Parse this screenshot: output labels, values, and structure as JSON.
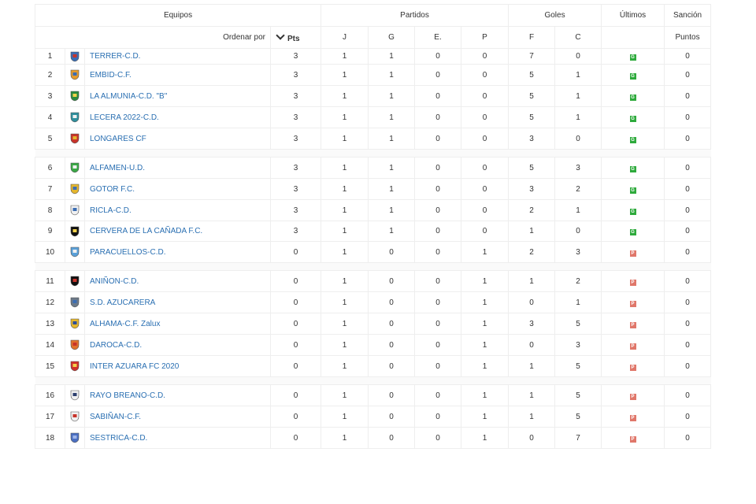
{
  "header": {
    "equipos": "Equipos",
    "partidos": "Partidos",
    "goles": "Goles",
    "ultimos": "Últimos",
    "sancion": "Sanción",
    "ordenar_por": "Ordenar por",
    "pts": "Pts",
    "j": "J",
    "g": "G",
    "e": "E.",
    "p": "P",
    "f": "F",
    "c": "C",
    "puntos": "Puntos"
  },
  "colors": {
    "win": "#2eaa3c",
    "loss": "#e0776a",
    "link": "#2a6fb2"
  },
  "rows": [
    {
      "pos": "1",
      "team": "TERRER-C.D.",
      "pts": "3",
      "j": "1",
      "g": "1",
      "e": "0",
      "p": "0",
      "f": "7",
      "c": "0",
      "last": "G",
      "sancion": "0",
      "crest": "shield-blue-red"
    },
    {
      "pos": "2",
      "team": "EMBID-C.F.",
      "pts": "3",
      "j": "1",
      "g": "1",
      "e": "0",
      "p": "0",
      "f": "5",
      "c": "1",
      "last": "G",
      "sancion": "0",
      "crest": "shield-orange"
    },
    {
      "pos": "3",
      "team": "LA ALMUNIA-C.D. \"B\"",
      "pts": "3",
      "j": "1",
      "g": "1",
      "e": "0",
      "p": "0",
      "f": "5",
      "c": "1",
      "last": "G",
      "sancion": "0",
      "crest": "round-green"
    },
    {
      "pos": "4",
      "team": "LECERA 2022-C.D.",
      "pts": "3",
      "j": "1",
      "g": "1",
      "e": "0",
      "p": "0",
      "f": "5",
      "c": "1",
      "last": "G",
      "sancion": "0",
      "crest": "shield-teal"
    },
    {
      "pos": "5",
      "team": "LONGARES CF",
      "pts": "3",
      "j": "1",
      "g": "1",
      "e": "0",
      "p": "0",
      "f": "3",
      "c": "0",
      "last": "G",
      "sancion": "0",
      "crest": "shield-red-gold"
    },
    {
      "pos": "6",
      "team": "ALFAMEN-U.D.",
      "pts": "3",
      "j": "1",
      "g": "1",
      "e": "0",
      "p": "0",
      "f": "5",
      "c": "3",
      "last": "G",
      "sancion": "0",
      "crest": "shield-green"
    },
    {
      "pos": "7",
      "team": "GOTOR F.C.",
      "pts": "3",
      "j": "1",
      "g": "1",
      "e": "0",
      "p": "0",
      "f": "3",
      "c": "2",
      "last": "G",
      "sancion": "0",
      "crest": "shield-gold-blue"
    },
    {
      "pos": "8",
      "team": "RICLA-C.D.",
      "pts": "3",
      "j": "1",
      "g": "1",
      "e": "0",
      "p": "0",
      "f": "2",
      "c": "1",
      "last": "G",
      "sancion": "0",
      "crest": "shield-white-blue"
    },
    {
      "pos": "9",
      "team": "CERVERA DE LA CAÑADA F.C.",
      "pts": "3",
      "j": "1",
      "g": "1",
      "e": "0",
      "p": "0",
      "f": "1",
      "c": "0",
      "last": "G",
      "sancion": "0",
      "crest": "shield-black-yellow"
    },
    {
      "pos": "10",
      "team": "PARACUELLOS-C.D.",
      "pts": "0",
      "j": "1",
      "g": "0",
      "e": "0",
      "p": "1",
      "f": "2",
      "c": "3",
      "last": "P",
      "sancion": "0",
      "crest": "shield-striped-blue"
    },
    {
      "pos": "11",
      "team": "ANIÑON-C.D.",
      "pts": "0",
      "j": "1",
      "g": "0",
      "e": "0",
      "p": "1",
      "f": "1",
      "c": "2",
      "last": "P",
      "sancion": "0",
      "crest": "shield-black-red"
    },
    {
      "pos": "12",
      "team": "S.D. AZUCARERA",
      "pts": "0",
      "j": "1",
      "g": "0",
      "e": "0",
      "p": "1",
      "f": "0",
      "c": "1",
      "last": "P",
      "sancion": "0",
      "crest": "shield-grey-blue"
    },
    {
      "pos": "13",
      "team": "ALHAMA-C.F. Zalux",
      "pts": "0",
      "j": "1",
      "g": "0",
      "e": "0",
      "p": "1",
      "f": "3",
      "c": "5",
      "last": "P",
      "sancion": "0",
      "crest": "shield-yellow-blue"
    },
    {
      "pos": "14",
      "team": "DAROCA-C.D.",
      "pts": "0",
      "j": "1",
      "g": "0",
      "e": "0",
      "p": "1",
      "f": "0",
      "c": "3",
      "last": "P",
      "sancion": "0",
      "crest": "shield-orange-red"
    },
    {
      "pos": "15",
      "team": "INTER AZUARA FC 2020",
      "pts": "0",
      "j": "1",
      "g": "0",
      "e": "0",
      "p": "1",
      "f": "1",
      "c": "5",
      "last": "P",
      "sancion": "0",
      "crest": "shield-red"
    },
    {
      "pos": "16",
      "team": "RAYO BREANO-C.D.",
      "pts": "0",
      "j": "1",
      "g": "0",
      "e": "0",
      "p": "1",
      "f": "1",
      "c": "5",
      "last": "P",
      "sancion": "0",
      "crest": "shield-white-navy"
    },
    {
      "pos": "17",
      "team": "SABIÑAN-C.F.",
      "pts": "0",
      "j": "1",
      "g": "0",
      "e": "0",
      "p": "1",
      "f": "1",
      "c": "5",
      "last": "P",
      "sancion": "0",
      "crest": "shield-white-red"
    },
    {
      "pos": "18",
      "team": "SESTRICA-C.D.",
      "pts": "0",
      "j": "1",
      "g": "0",
      "e": "0",
      "p": "1",
      "f": "0",
      "c": "7",
      "last": "P",
      "sancion": "0",
      "crest": "bird-blue"
    }
  ]
}
